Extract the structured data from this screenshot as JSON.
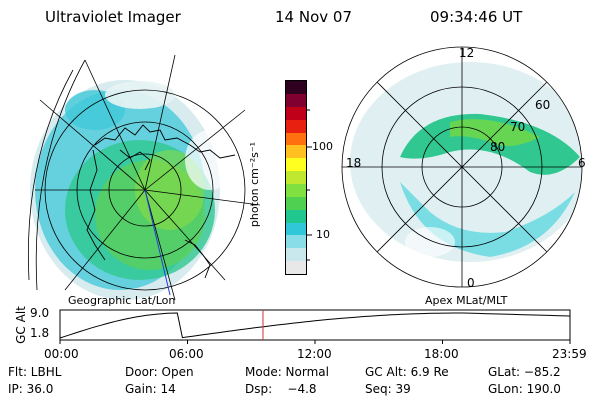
{
  "header": {
    "title": "Ultraviolet Imager",
    "date": "14 Nov 07",
    "time": "09:34:46 UT"
  },
  "left_map": {
    "caption": "Geographic Lat/Lon"
  },
  "right_map": {
    "caption": "Apex MLat/MLT",
    "mlt_labels": [
      "12",
      "18",
      "6",
      "0"
    ],
    "lat_labels": [
      "60",
      "70",
      "80"
    ]
  },
  "colorbar": {
    "unit_label": "photon cm⁻²s⁻¹",
    "ticks": [
      "100",
      "10"
    ],
    "colors": [
      "#e8e8e8",
      "#c8e8ee",
      "#88dde8",
      "#30c8d8",
      "#20c890",
      "#50d050",
      "#80e040",
      "#c0e830",
      "#ffff20",
      "#ffc020",
      "#ff7010",
      "#e82010",
      "#c00018",
      "#800030",
      "#300020"
    ]
  },
  "altitude_plot": {
    "axis_label": "GC Alt",
    "y_ticks": [
      "9.0",
      "1.8"
    ],
    "x_ticks": [
      "00:00",
      "06:00",
      "12:00",
      "18:00",
      "23:59"
    ],
    "current_time_fraction": 0.398,
    "curve_color": "#000000",
    "marker_color": "#d03030"
  },
  "info": {
    "filter": "Flt: LBHL",
    "door": "Door: Open",
    "mode": "Mode: Normal",
    "gc_alt": "GC Alt: 6.9 Re",
    "glat": "GLat: −85.2",
    "ip": "IP: 36.0",
    "gain": "Gain: 14",
    "dsp": "Dsp:    −4.8",
    "seq": "Seq: 39",
    "glon": "GLon: 190.0"
  }
}
